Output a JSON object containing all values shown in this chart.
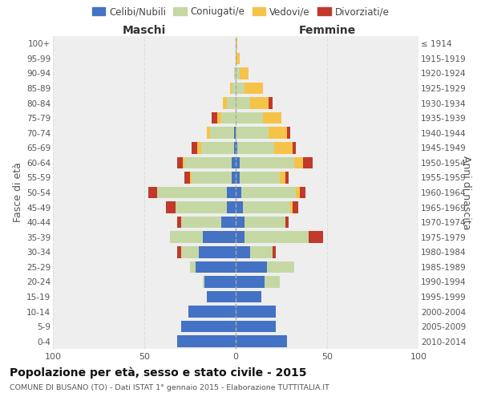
{
  "age_groups_bottom_to_top": [
    "0-4",
    "5-9",
    "10-14",
    "15-19",
    "20-24",
    "25-29",
    "30-34",
    "35-39",
    "40-44",
    "45-49",
    "50-54",
    "55-59",
    "60-64",
    "65-69",
    "70-74",
    "75-79",
    "80-84",
    "85-89",
    "90-94",
    "95-99",
    "100+"
  ],
  "birth_years_bottom_to_top": [
    "2010-2014",
    "2005-2009",
    "2000-2004",
    "1995-1999",
    "1990-1994",
    "1985-1989",
    "1980-1984",
    "1975-1979",
    "1970-1974",
    "1965-1969",
    "1960-1964",
    "1955-1959",
    "1950-1954",
    "1945-1949",
    "1940-1944",
    "1935-1939",
    "1930-1934",
    "1925-1929",
    "1920-1924",
    "1915-1919",
    "≤ 1914"
  ],
  "colors": {
    "celibe": "#4472C4",
    "coniugato": "#C5D8A4",
    "vedovo": "#F5C348",
    "divorziato": "#C0392B"
  },
  "males_bottom_to_top": {
    "celibe": [
      32,
      30,
      26,
      16,
      17,
      22,
      20,
      18,
      8,
      5,
      5,
      2,
      2,
      1,
      1,
      0,
      0,
      0,
      0,
      0,
      0
    ],
    "coniugato": [
      0,
      0,
      0,
      0,
      1,
      3,
      10,
      18,
      22,
      28,
      38,
      22,
      26,
      18,
      13,
      8,
      5,
      2,
      1,
      0,
      0
    ],
    "vedovo": [
      0,
      0,
      0,
      0,
      0,
      0,
      0,
      0,
      0,
      0,
      0,
      1,
      1,
      2,
      2,
      2,
      2,
      1,
      0,
      0,
      0
    ],
    "divorziato": [
      0,
      0,
      0,
      0,
      0,
      0,
      2,
      0,
      2,
      5,
      5,
      3,
      3,
      3,
      0,
      3,
      0,
      0,
      0,
      0,
      0
    ]
  },
  "females_bottom_to_top": {
    "nubile": [
      28,
      22,
      22,
      14,
      16,
      17,
      8,
      5,
      5,
      4,
      3,
      2,
      2,
      1,
      0,
      0,
      0,
      0,
      0,
      0,
      0
    ],
    "coniugata": [
      0,
      0,
      0,
      0,
      8,
      15,
      12,
      35,
      22,
      26,
      30,
      22,
      30,
      20,
      18,
      15,
      8,
      5,
      2,
      0,
      0
    ],
    "vedova": [
      0,
      0,
      0,
      0,
      0,
      0,
      0,
      0,
      0,
      1,
      2,
      3,
      5,
      10,
      10,
      10,
      10,
      10,
      5,
      2,
      1
    ],
    "divorziata": [
      0,
      0,
      0,
      0,
      0,
      0,
      2,
      8,
      2,
      3,
      3,
      2,
      5,
      2,
      2,
      0,
      2,
      0,
      0,
      0,
      0
    ]
  },
  "xlim": 100,
  "title": "Popolazione per età, sesso e stato civile - 2015",
  "subtitle": "COMUNE DI BUSANO (TO) - Dati ISTAT 1° gennaio 2015 - Elaborazione TUTTITALIA.IT",
  "ylabel": "Fasce di età",
  "ylabel_right": "Anni di nascita",
  "xlabel_left": "Maschi",
  "xlabel_right": "Femmine",
  "bg_color": "#ffffff",
  "plot_bg_color": "#eeeeee",
  "grid_color": "#dddddd",
  "legend_labels": [
    "Celibi/Nubili",
    "Coniugati/e",
    "Vedovi/e",
    "Divorziati/e"
  ]
}
